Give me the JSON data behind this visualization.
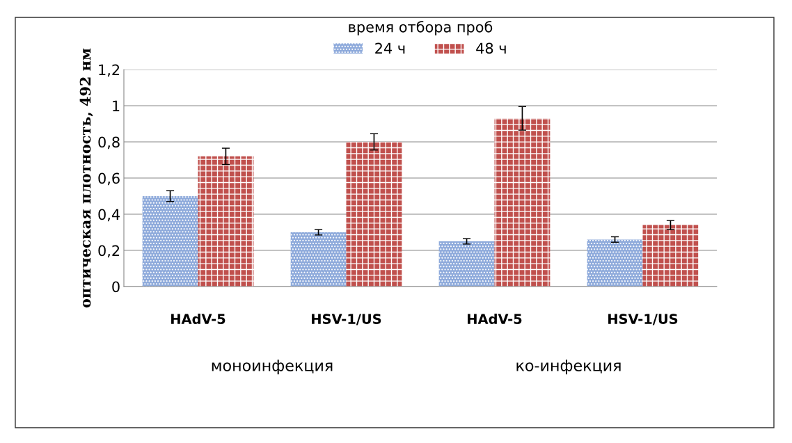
{
  "chart_data": {
    "type": "bar",
    "categories": [
      "HAdV-5",
      "HSV-1/US",
      "HAdV-5",
      "HSV-1/US"
    ],
    "series": [
      {
        "name": "24 ч",
        "color": "#8eaadb",
        "values": [
          0.5,
          0.3,
          0.25,
          0.26
        ],
        "errors": [
          0.03,
          0.015,
          0.015,
          0.015
        ]
      },
      {
        "name": "48 ч",
        "color": "#c0504d",
        "values": [
          0.72,
          0.8,
          0.93,
          0.34
        ],
        "errors": [
          0.045,
          0.045,
          0.065,
          0.025
        ]
      }
    ],
    "ylabel": "оптическая плотность, 492 нм",
    "legend_title": "время отбора проб",
    "annotations": [
      "моноинфекция",
      "ко-инфекция"
    ],
    "ylim": [
      0,
      1.2
    ],
    "yticks": [
      0,
      {
        "value": 0.2,
        "label": "0,2"
      },
      {
        "value": 0.4,
        "label": "0,4"
      },
      {
        "value": 0.6,
        "label": "0,6"
      },
      {
        "value": 0.8,
        "label": "0,8"
      },
      1,
      {
        "value": 1.2,
        "label": "1,2"
      }
    ],
    "grid": "y",
    "legend": "top"
  }
}
